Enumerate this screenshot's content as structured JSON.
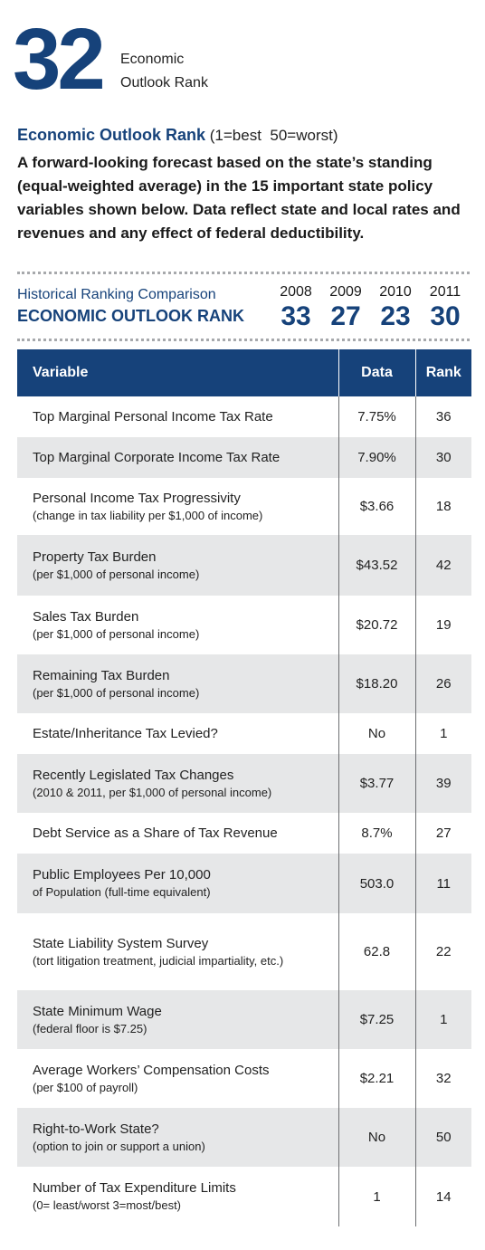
{
  "header": {
    "rank_number": "32",
    "rank_label_line1": "Economic",
    "rank_label_line2": "Outlook Rank"
  },
  "intro": {
    "title": "Economic Outlook Rank",
    "scale": "(1=best  50=worst)",
    "description": "A forward-looking forecast based on the state’s standing (equal-weighted average) in the 15 important state policy variables shown below. Data reflect state and local rates and revenues and any effect of federal deductibility."
  },
  "history": {
    "title_line1": "Historical Ranking Comparison",
    "title_line2": "ECONOMIC OUTLOOK RANK",
    "years": [
      "2008",
      "2009",
      "2010",
      "2011"
    ],
    "ranks": [
      "33",
      "27",
      "23",
      "30"
    ]
  },
  "table": {
    "headers": {
      "variable": "Variable",
      "data": "Data",
      "rank": "Rank"
    },
    "rows": [
      {
        "name": "Top Marginal Personal Income Tax Rate",
        "sub": "",
        "data": "7.75%",
        "rank": "36"
      },
      {
        "name": "Top Marginal Corporate Income Tax Rate",
        "sub": "",
        "data": "7.90%",
        "rank": "30"
      },
      {
        "name": "Personal Income Tax Progressivity",
        "sub": "(change in tax liability per $1,000 of income)",
        "data": "$3.66",
        "rank": "18"
      },
      {
        "name": "Property Tax Burden",
        "sub": "(per $1,000 of personal income)",
        "data": "$43.52",
        "rank": "42"
      },
      {
        "name": "Sales Tax Burden",
        "sub": "(per $1,000 of personal income)",
        "data": "$20.72",
        "rank": "19"
      },
      {
        "name": "Remaining Tax Burden",
        "sub": "(per $1,000 of personal income)",
        "data": "$18.20",
        "rank": "26"
      },
      {
        "name": "Estate/Inheritance Tax Levied?",
        "sub": "",
        "data": "No",
        "rank": "1"
      },
      {
        "name": "Recently Legislated Tax Changes",
        "sub": "(2010 & 2011, per $1,000 of personal income)",
        "data": "$3.77",
        "rank": "39"
      },
      {
        "name": "Debt Service as a Share of Tax Revenue",
        "sub": "",
        "data": "8.7%",
        "rank": "27"
      },
      {
        "name": "Public Employees Per 10,000",
        "sub": "of Population (full-time equivalent)",
        "data": "503.0",
        "rank": "11"
      },
      {
        "name": "State Liability System Survey",
        "sub": "(tort litigation treatment, judicial impartiality, etc.)",
        "data": "62.8",
        "rank": "22"
      },
      {
        "name": "State Minimum Wage",
        "sub": "(federal floor is $7.25)",
        "data": "$7.25",
        "rank": "1"
      },
      {
        "name": "Average Workers’ Compensation Costs",
        "sub": "(per $100 of payroll)",
        "data": "$2.21",
        "rank": "32"
      },
      {
        "name": "Right-to-Work State?",
        "sub": "(option to join or support a union)",
        "data": "No",
        "rank": "50"
      },
      {
        "name": "Number of Tax Expenditure Limits",
        "sub": "(0= least/worst   3=most/best)",
        "data": "1",
        "rank": "14"
      }
    ]
  },
  "colors": {
    "brand_blue": "#16427a",
    "row_alt": "#e6e7e8"
  }
}
